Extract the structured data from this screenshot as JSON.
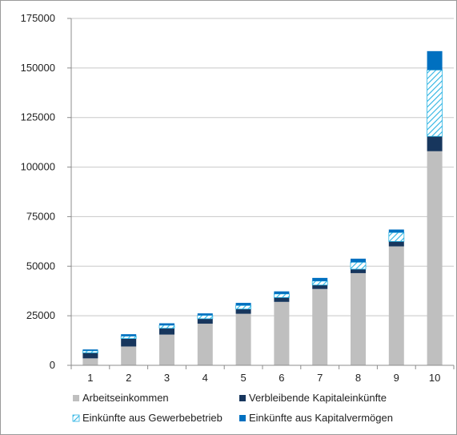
{
  "colors": {
    "arbeit": "#bfbfbf",
    "verbleibend": "#17365d",
    "gewerbe_stroke": "#2ab3e3",
    "kapital": "#0070c0",
    "grid": "#c8c8c8",
    "axis": "#8c8c8c"
  },
  "chart_data": {
    "type": "bar",
    "stacked": true,
    "title": "",
    "xlabel": "",
    "ylabel": "",
    "ylim": [
      0,
      175000
    ],
    "yticks": [
      0,
      25000,
      50000,
      75000,
      100000,
      125000,
      150000,
      175000
    ],
    "ytick_labels": [
      "0",
      "25000",
      "50000",
      "75000",
      "100000",
      "125000",
      "150000",
      "175000"
    ],
    "categories": [
      "1",
      "2",
      "3",
      "4",
      "5",
      "6",
      "7",
      "8",
      "9",
      "10"
    ],
    "grid": "horizontal",
    "legend_position": "bottom",
    "series": [
      {
        "name": "Arbeitseinkommen",
        "key": "arbeit",
        "pattern": "solid",
        "values": [
          3500,
          9500,
          15500,
          21000,
          26000,
          32000,
          38500,
          46500,
          60000,
          108000
        ]
      },
      {
        "name": "Verbleibende Kapitaleinkünfte",
        "key": "verbleibend",
        "pattern": "solid",
        "values": [
          2800,
          4000,
          3200,
          2500,
          2400,
          2200,
          2000,
          2000,
          2500,
          7500
        ]
      },
      {
        "name": "Einkünfte aus Gewerbebetrieb",
        "key": "gewerbe",
        "pattern": "hatched",
        "values": [
          1000,
          1200,
          1500,
          1700,
          1800,
          1800,
          2000,
          3500,
          4500,
          33500
        ]
      },
      {
        "name": "Einkünfte aus Kapitalvermögen",
        "key": "kapital",
        "pattern": "solid",
        "values": [
          700,
          1000,
          1000,
          1000,
          1300,
          1300,
          1600,
          1800,
          1500,
          9500
        ]
      }
    ]
  }
}
